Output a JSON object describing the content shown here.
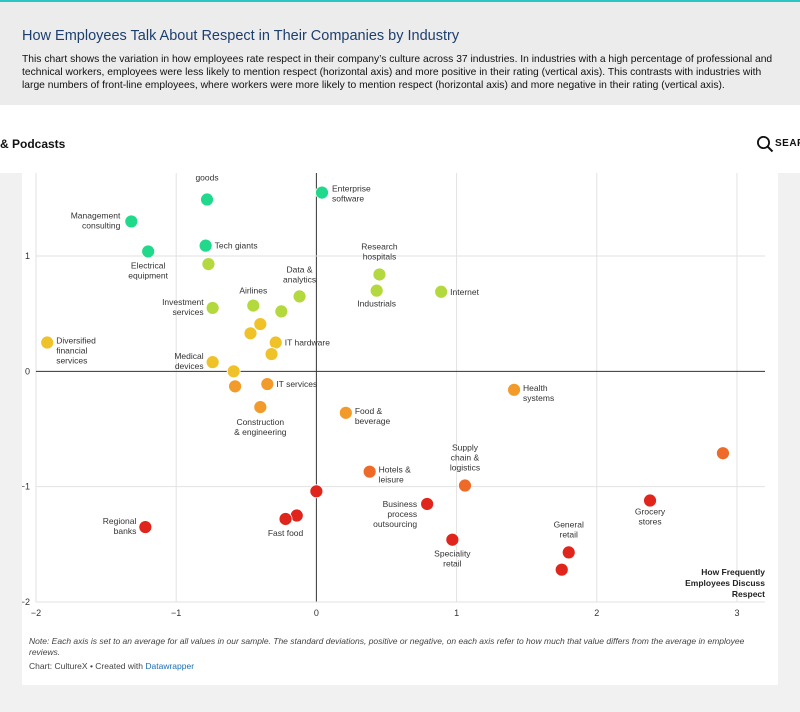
{
  "header": {
    "title": "How Employees Talk About Respect in Their Companies by Industry",
    "description": "This chart shows the variation in how employees rate respect in their company’s culture across 37 industries. In industries with a high percentage of professional and technical workers, employees were less likely to mention respect (horizontal axis) and more positive in their rating (vertical axis). This contrasts with industries with large numbers of front-line employees, where workers were more likely to mention respect (horizontal axis) and more negative in their rating (vertical axis)."
  },
  "nav": {
    "label": "& Podcasts",
    "search_label": "SEAR",
    "search_icon": "search-icon"
  },
  "footer": {
    "note": "Note: Each axis is set to an average for all values in our sample. The standard deviations, positive or negative, on each axis refer to how much that value differs from the average in employee reviews.",
    "credit_prefix": "Chart: CultureX • Created with ",
    "credit_link": "Datawrapper"
  },
  "chart_data": {
    "type": "scatter",
    "xlabel": "How Frequently Employees Discuss Respect",
    "ylabel": "",
    "xlim": [
      -2.0,
      3.2
    ],
    "ylim": [
      -2.0,
      1.72
    ],
    "xticks": [
      -2,
      -1,
      0,
      1,
      2,
      3
    ],
    "yticks": [
      -2,
      -1,
      0,
      1
    ],
    "xtick_labels": [
      "−2",
      "−1",
      "0",
      "1",
      "2",
      "3"
    ],
    "ytick_labels": [
      "−2",
      "−1",
      "0",
      "1"
    ],
    "grid": true,
    "colors": {
      "teal_green": "#21d98a",
      "lime": "#b4d93e",
      "yellow": "#f0c22a",
      "orange": "#f29a2a",
      "dark_orange": "#ee6a28",
      "red": "#e0251c"
    },
    "points": [
      {
        "x": 0.04,
        "y": 1.55,
        "label": "Enterprise\nsoftware",
        "color": "teal_green"
      },
      {
        "x": -0.78,
        "y": 1.49,
        "label": "Consumer\ngoods",
        "color": "teal_green"
      },
      {
        "x": -1.32,
        "y": 1.3,
        "label": "Management\nconsulting",
        "color": "teal_green"
      },
      {
        "x": -0.79,
        "y": 1.09,
        "label": "Tech giants",
        "color": "teal_green"
      },
      {
        "x": -1.2,
        "y": 1.04,
        "label": "Electrical\nequipment",
        "color": "teal_green"
      },
      {
        "x": -0.77,
        "y": 0.93,
        "label": "",
        "color": "lime"
      },
      {
        "x": 0.45,
        "y": 0.84,
        "label": "Research\nhospitals",
        "color": "lime"
      },
      {
        "x": 0.43,
        "y": 0.7,
        "label": "Industrials",
        "color": "lime"
      },
      {
        "x": 0.89,
        "y": 0.69,
        "label": "Internet",
        "color": "lime"
      },
      {
        "x": -0.12,
        "y": 0.65,
        "label": "Data &\nanalytics",
        "color": "lime"
      },
      {
        "x": -0.45,
        "y": 0.57,
        "label": "Airlines",
        "color": "lime"
      },
      {
        "x": -0.74,
        "y": 0.55,
        "label": "Investment\nservices",
        "color": "lime"
      },
      {
        "x": -0.25,
        "y": 0.52,
        "label": "",
        "color": "lime"
      },
      {
        "x": -0.4,
        "y": 0.41,
        "label": "",
        "color": "yellow"
      },
      {
        "x": -0.47,
        "y": 0.33,
        "label": "",
        "color": "yellow"
      },
      {
        "x": -0.29,
        "y": 0.25,
        "label": "IT hardware",
        "color": "yellow"
      },
      {
        "x": -1.92,
        "y": 0.25,
        "label": "Diversified\nfinancial\nservices",
        "color": "yellow"
      },
      {
        "x": -0.32,
        "y": 0.15,
        "label": "",
        "color": "yellow"
      },
      {
        "x": -0.74,
        "y": 0.08,
        "label": "Medical\ndevices",
        "color": "yellow"
      },
      {
        "x": -0.59,
        "y": 0.0,
        "label": "",
        "color": "yellow"
      },
      {
        "x": -0.58,
        "y": -0.13,
        "label": "",
        "color": "orange"
      },
      {
        "x": -0.35,
        "y": -0.11,
        "label": "IT services",
        "color": "orange"
      },
      {
        "x": -0.4,
        "y": -0.31,
        "label": "Construction\n& engineering",
        "color": "orange"
      },
      {
        "x": 0.21,
        "y": -0.36,
        "label": "Food &\nbeverage",
        "color": "orange"
      },
      {
        "x": 1.41,
        "y": -0.16,
        "label": "Health\nsystems",
        "color": "orange"
      },
      {
        "x": 2.9,
        "y": -0.71,
        "label": "",
        "color": "dark_orange"
      },
      {
        "x": 0.38,
        "y": -0.87,
        "label": "Hotels &\nleisure",
        "color": "dark_orange"
      },
      {
        "x": 1.06,
        "y": -0.99,
        "label": "Supply\nchain &\nlogistics",
        "color": "dark_orange"
      },
      {
        "x": 0.0,
        "y": -1.04,
        "label": "",
        "color": "red"
      },
      {
        "x": 0.79,
        "y": -1.15,
        "label": "Business\nprocess\noutsourcing",
        "color": "red"
      },
      {
        "x": 2.38,
        "y": -1.12,
        "label": "Grocery\nstores",
        "color": "red"
      },
      {
        "x": -0.14,
        "y": -1.25,
        "label": "",
        "color": "red"
      },
      {
        "x": -0.22,
        "y": -1.28,
        "label": "Fast food",
        "color": "red"
      },
      {
        "x": -1.22,
        "y": -1.35,
        "label": "Regional\nbanks",
        "color": "red"
      },
      {
        "x": 0.97,
        "y": -1.46,
        "label": "Speciality\nretail",
        "color": "red"
      },
      {
        "x": 1.8,
        "y": -1.57,
        "label": "General\nretail",
        "color": "red"
      },
      {
        "x": 1.75,
        "y": -1.72,
        "label": "",
        "color": "red"
      }
    ]
  }
}
